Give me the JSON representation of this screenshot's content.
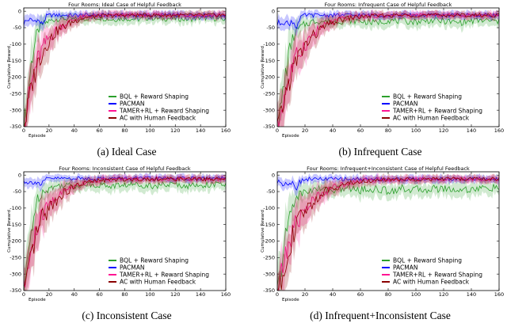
{
  "chart_data": [
    {
      "type": "line",
      "title": "Four Rooms: Ideal Case of Helpful Feedback",
      "caption": "(a) Ideal Case",
      "xlabel": "Episode",
      "ylabel": "Cumulative Reward",
      "xlim": [
        0,
        160
      ],
      "ylim": [
        -350,
        10
      ],
      "xticks": [
        "0",
        "20",
        "40",
        "60",
        "80",
        "100",
        "120",
        "140",
        "160"
      ],
      "yticks": [
        "0",
        "-50",
        "-100",
        "-150",
        "-200",
        "-250",
        "-300",
        "-350"
      ],
      "legend_position": "lower-right",
      "series": [
        {
          "name": "BQL + Reward Shaping",
          "color": "#2ca02c",
          "x": [
            0,
            2,
            4,
            6,
            8,
            10,
            12,
            15,
            20,
            25,
            30,
            40,
            50,
            60,
            70,
            80,
            90,
            100,
            110,
            120,
            130,
            140,
            150,
            160
          ],
          "y": [
            -350,
            -300,
            -220,
            -160,
            -110,
            -75,
            -55,
            -40,
            -30,
            -25,
            -22,
            -25,
            -22,
            -20,
            -25,
            -22,
            -25,
            -20,
            -23,
            -22,
            -25,
            -20,
            -22,
            -25
          ]
        },
        {
          "name": "PACMAN",
          "color": "#0000ff",
          "x": [
            0,
            2,
            4,
            6,
            8,
            10,
            12,
            14,
            16,
            18,
            20,
            25,
            30,
            40,
            60,
            80,
            100,
            120,
            140,
            160
          ],
          "y": [
            -35,
            -30,
            -25,
            -28,
            -30,
            -25,
            -30,
            -40,
            -30,
            -15,
            -12,
            -12,
            -12,
            -12,
            -12,
            -12,
            -12,
            -12,
            -12,
            -12
          ]
        },
        {
          "name": "TAMER+RL + Reward Shaping",
          "color": "#ff1493",
          "x": [
            0,
            2,
            4,
            6,
            8,
            10,
            12,
            15,
            20,
            25,
            30,
            35,
            40,
            45,
            50,
            60,
            70,
            80,
            100,
            120,
            140,
            160
          ],
          "y": [
            -350,
            -310,
            -260,
            -220,
            -190,
            -160,
            -140,
            -110,
            -80,
            -60,
            -45,
            -35,
            -25,
            -20,
            -16,
            -14,
            -13,
            -12,
            -12,
            -12,
            -12,
            -12
          ]
        },
        {
          "name": "AC with Human Feedback",
          "color": "#8b0000",
          "x": [
            0,
            2,
            4,
            6,
            8,
            10,
            12,
            15,
            20,
            25,
            30,
            35,
            40,
            45,
            50,
            60,
            70,
            80,
            100,
            120,
            140,
            160
          ],
          "y": [
            -350,
            -320,
            -270,
            -230,
            -200,
            -170,
            -150,
            -120,
            -90,
            -65,
            -50,
            -40,
            -30,
            -22,
            -18,
            -15,
            -13,
            -12,
            -12,
            -12,
            -12,
            -12
          ]
        }
      ]
    },
    {
      "type": "line",
      "title": "Four Rooms: Infrequent Case of Helpful Feedback",
      "caption": "(b) Infrequent Case",
      "xlabel": "Episode",
      "ylabel": "Cumulative Reward",
      "xlim": [
        0,
        160
      ],
      "ylim": [
        -350,
        10
      ],
      "xticks": [
        "0",
        "20",
        "40",
        "60",
        "80",
        "100",
        "120",
        "140",
        "160"
      ],
      "yticks": [
        "0",
        "-50",
        "-100",
        "-150",
        "-200",
        "-250",
        "-300",
        "-350"
      ],
      "legend_position": "lower-right",
      "series": [
        {
          "name": "BQL + Reward Shaping",
          "color": "#2ca02c",
          "x": [
            0,
            2,
            4,
            6,
            8,
            10,
            12,
            15,
            20,
            25,
            30,
            40,
            50,
            60,
            70,
            80,
            90,
            100,
            110,
            120,
            130,
            140,
            150,
            160
          ],
          "y": [
            -350,
            -310,
            -250,
            -190,
            -140,
            -100,
            -75,
            -55,
            -40,
            -32,
            -30,
            -32,
            -28,
            -30,
            -35,
            -28,
            -30,
            -32,
            -28,
            -30,
            -35,
            -30,
            -28,
            -32
          ]
        },
        {
          "name": "PACMAN",
          "color": "#0000ff",
          "x": [
            0,
            2,
            4,
            6,
            8,
            10,
            12,
            14,
            16,
            18,
            20,
            25,
            30,
            40,
            60,
            80,
            100,
            120,
            140,
            160
          ],
          "y": [
            -40,
            -35,
            -30,
            -35,
            -40,
            -30,
            -35,
            -45,
            -30,
            -15,
            -12,
            -12,
            -12,
            -12,
            -12,
            -12,
            -12,
            -12,
            -12,
            -12
          ]
        },
        {
          "name": "TAMER+RL + Reward Shaping",
          "color": "#ff1493",
          "x": [
            0,
            2,
            4,
            6,
            8,
            10,
            12,
            15,
            20,
            25,
            30,
            35,
            40,
            45,
            50,
            60,
            70,
            80,
            100,
            120,
            140,
            160
          ],
          "y": [
            -350,
            -320,
            -280,
            -240,
            -210,
            -180,
            -160,
            -130,
            -100,
            -75,
            -55,
            -42,
            -32,
            -25,
            -20,
            -16,
            -14,
            -13,
            -12,
            -12,
            -12,
            -12
          ]
        },
        {
          "name": "AC with Human Feedback",
          "color": "#8b0000",
          "x": [
            0,
            2,
            4,
            6,
            8,
            10,
            12,
            15,
            20,
            25,
            30,
            35,
            40,
            45,
            50,
            60,
            70,
            80,
            100,
            120,
            140,
            160
          ],
          "y": [
            -350,
            -330,
            -290,
            -250,
            -220,
            -195,
            -170,
            -140,
            -105,
            -80,
            -60,
            -45,
            -35,
            -27,
            -22,
            -17,
            -14,
            -13,
            -12,
            -12,
            -12,
            -12
          ]
        }
      ]
    },
    {
      "type": "line",
      "title": "Four Rooms: Inconsistent Case of Helpful Feedback",
      "caption": "(c) Inconsistent Case",
      "xlabel": "Episode",
      "ylabel": "Cumulative Reward",
      "xlim": [
        0,
        160
      ],
      "ylim": [
        -350,
        10
      ],
      "xticks": [
        "0",
        "20",
        "40",
        "60",
        "80",
        "100",
        "120",
        "140",
        "160"
      ],
      "yticks": [
        "0",
        "-50",
        "-100",
        "-150",
        "-200",
        "-250",
        "-300",
        "-350"
      ],
      "legend_position": "lower-right",
      "series": [
        {
          "name": "BQL + Reward Shaping",
          "color": "#2ca02c",
          "x": [
            0,
            2,
            4,
            6,
            8,
            10,
            12,
            15,
            20,
            25,
            30,
            40,
            50,
            60,
            70,
            80,
            90,
            100,
            110,
            120,
            130,
            140,
            150,
            160
          ],
          "y": [
            -350,
            -300,
            -230,
            -170,
            -120,
            -85,
            -65,
            -50,
            -40,
            -35,
            -30,
            -32,
            -28,
            -30,
            -33,
            -30,
            -28,
            -32,
            -30,
            -28,
            -33,
            -30,
            -28,
            -30
          ]
        },
        {
          "name": "PACMAN",
          "color": "#0000ff",
          "x": [
            0,
            2,
            4,
            6,
            8,
            10,
            12,
            14,
            16,
            18,
            20,
            25,
            30,
            40,
            60,
            80,
            100,
            120,
            140,
            160
          ],
          "y": [
            -20,
            -18,
            -25,
            -22,
            -20,
            -22,
            -25,
            -30,
            -20,
            -12,
            -10,
            -10,
            -10,
            -10,
            -10,
            -10,
            -10,
            -10,
            -10,
            -10
          ]
        },
        {
          "name": "TAMER+RL + Reward Shaping",
          "color": "#ff1493",
          "x": [
            0,
            2,
            4,
            6,
            8,
            10,
            12,
            15,
            20,
            25,
            30,
            35,
            40,
            45,
            50,
            60,
            70,
            80,
            100,
            120,
            140,
            160
          ],
          "y": [
            -350,
            -310,
            -270,
            -230,
            -200,
            -170,
            -150,
            -120,
            -90,
            -70,
            -55,
            -42,
            -32,
            -25,
            -20,
            -16,
            -14,
            -13,
            -12,
            -12,
            -12,
            -12
          ]
        },
        {
          "name": "AC with Human Feedback",
          "color": "#8b0000",
          "x": [
            0,
            2,
            4,
            6,
            8,
            10,
            12,
            15,
            20,
            25,
            30,
            35,
            40,
            45,
            50,
            60,
            70,
            80,
            100,
            120,
            140,
            160
          ],
          "y": [
            -350,
            -330,
            -290,
            -250,
            -215,
            -185,
            -160,
            -130,
            -100,
            -78,
            -60,
            -46,
            -36,
            -28,
            -22,
            -17,
            -14,
            -13,
            -12,
            -12,
            -12,
            -12
          ]
        }
      ]
    },
    {
      "type": "line",
      "title": "Four Rooms: Infrequent+Inconsistent Case of Helpful Feedback",
      "caption": "(d) Infrequent+Inconsistent Case",
      "xlabel": "Episode",
      "ylabel": "Cumulative Reward",
      "xlim": [
        0,
        160
      ],
      "ylim": [
        -350,
        10
      ],
      "xticks": [
        "0",
        "20",
        "40",
        "60",
        "80",
        "100",
        "120",
        "140",
        "160"
      ],
      "yticks": [
        "0",
        "-50",
        "-100",
        "-150",
        "-200",
        "-250",
        "-300",
        "-350"
      ],
      "legend_position": "lower-right",
      "series": [
        {
          "name": "BQL + Reward Shaping",
          "color": "#2ca02c",
          "x": [
            0,
            2,
            4,
            6,
            8,
            10,
            12,
            15,
            20,
            25,
            30,
            40,
            50,
            60,
            70,
            80,
            90,
            100,
            110,
            120,
            130,
            140,
            150,
            160
          ],
          "y": [
            -350,
            -310,
            -250,
            -190,
            -140,
            -105,
            -80,
            -62,
            -50,
            -45,
            -42,
            -45,
            -40,
            -45,
            -42,
            -48,
            -40,
            -45,
            -42,
            -40,
            -45,
            -42,
            -40,
            -38
          ]
        },
        {
          "name": "PACMAN",
          "color": "#0000ff",
          "x": [
            0,
            2,
            4,
            6,
            8,
            10,
            12,
            14,
            16,
            18,
            20,
            25,
            30,
            40,
            60,
            80,
            100,
            120,
            140,
            160
          ],
          "y": [
            -22,
            -20,
            -25,
            -22,
            -25,
            -22,
            -28,
            -35,
            -22,
            -15,
            -12,
            -12,
            -12,
            -12,
            -12,
            -12,
            -12,
            -12,
            -12,
            -12
          ]
        },
        {
          "name": "TAMER+RL + Reward Shaping",
          "color": "#ff1493",
          "x": [
            0,
            2,
            4,
            6,
            8,
            10,
            12,
            15,
            20,
            25,
            30,
            35,
            40,
            45,
            50,
            60,
            70,
            80,
            100,
            120,
            140,
            160
          ],
          "y": [
            -350,
            -320,
            -280,
            -245,
            -215,
            -185,
            -165,
            -135,
            -105,
            -80,
            -62,
            -48,
            -38,
            -30,
            -24,
            -18,
            -15,
            -14,
            -13,
            -12,
            -12,
            -12
          ]
        },
        {
          "name": "AC with Human Feedback",
          "color": "#8b0000",
          "x": [
            0,
            2,
            4,
            6,
            8,
            10,
            12,
            15,
            20,
            25,
            30,
            35,
            40,
            45,
            50,
            60,
            70,
            80,
            100,
            120,
            140,
            160
          ],
          "y": [
            -350,
            -335,
            -300,
            -260,
            -230,
            -200,
            -175,
            -145,
            -110,
            -85,
            -65,
            -50,
            -40,
            -32,
            -26,
            -20,
            -16,
            -14,
            -13,
            -12,
            -12,
            -12
          ]
        }
      ]
    }
  ]
}
